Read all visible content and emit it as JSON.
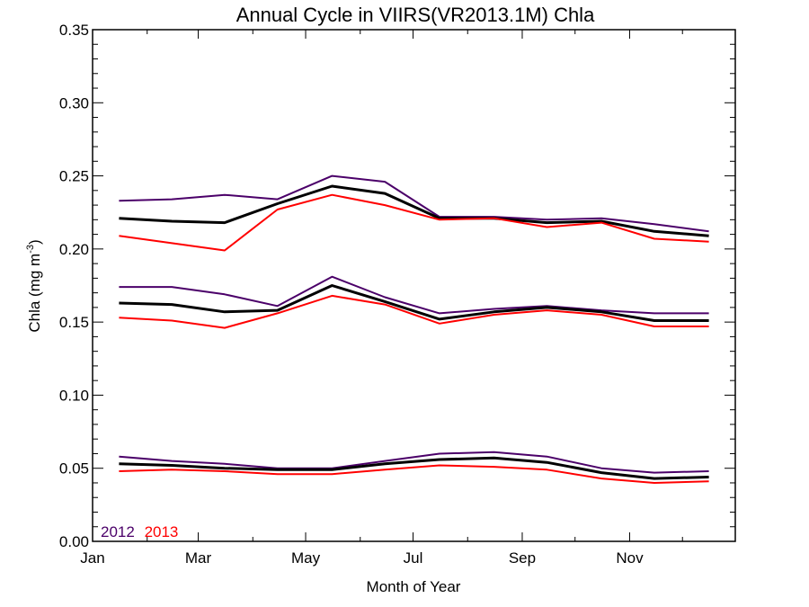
{
  "chart_data": {
    "type": "line",
    "title": "Annual Cycle in VIIRS(VR2013.1M) Chla",
    "xlabel": "Month of Year",
    "ylabel": "Chla (mg m",
    "ylabel_superscript": "-3",
    "ylabel_suffix": ")",
    "ylim": [
      0.0,
      0.35
    ],
    "xlim_days": [
      1,
      366
    ],
    "grid": false,
    "x_tick_labels": [
      "Jan",
      "Mar",
      "May",
      "Jul",
      "Sep",
      "Nov"
    ],
    "y_tick_labels": [
      "0.00",
      "0.05",
      "0.10",
      "0.15",
      "0.20",
      "0.25",
      "0.30",
      "0.35"
    ],
    "y_ticks": [
      0.0,
      0.05,
      0.1,
      0.15,
      0.2,
      0.25,
      0.3,
      0.35
    ],
    "legend": {
      "placement": "bottom-left",
      "items": [
        {
          "label": "2012",
          "color": "#4b0069"
        },
        {
          "label": "2013",
          "color": "#ff0000"
        }
      ]
    },
    "x": [
      "Jan 16",
      "Feb 15",
      "Mar 16",
      "Apr 15",
      "May 16",
      "Jun 15",
      "Jul 16",
      "Aug 16",
      "Sep 15",
      "Oct 16",
      "Nov 15",
      "Dec 16"
    ],
    "series": [
      {
        "group": "upper",
        "color": "#4b0069",
        "width": 2,
        "values": [
          0.233,
          0.234,
          0.237,
          0.234,
          0.25,
          0.246,
          0.222,
          0.222,
          0.22,
          0.221,
          0.217,
          0.212
        ]
      },
      {
        "group": "upper",
        "color": "#000000",
        "width": 3,
        "values": [
          0.221,
          0.219,
          0.218,
          0.231,
          0.243,
          0.238,
          0.221,
          0.221,
          0.218,
          0.219,
          0.212,
          0.209
        ]
      },
      {
        "group": "upper",
        "color": "#ff0000",
        "width": 2,
        "values": [
          0.209,
          0.204,
          0.199,
          0.227,
          0.237,
          0.23,
          0.22,
          0.221,
          0.215,
          0.218,
          0.207,
          0.205
        ]
      },
      {
        "group": "middle",
        "color": "#4b0069",
        "width": 2,
        "values": [
          0.174,
          0.174,
          0.169,
          0.161,
          0.181,
          0.167,
          0.156,
          0.159,
          0.161,
          0.158,
          0.156,
          0.156
        ]
      },
      {
        "group": "middle",
        "color": "#000000",
        "width": 3,
        "values": [
          0.163,
          0.162,
          0.157,
          0.158,
          0.175,
          0.164,
          0.152,
          0.157,
          0.16,
          0.157,
          0.151,
          0.151
        ]
      },
      {
        "group": "middle",
        "color": "#ff0000",
        "width": 2,
        "values": [
          0.153,
          0.151,
          0.146,
          0.156,
          0.168,
          0.162,
          0.149,
          0.155,
          0.158,
          0.155,
          0.147,
          0.147
        ]
      },
      {
        "group": "lower",
        "color": "#4b0069",
        "width": 2,
        "values": [
          0.058,
          0.055,
          0.053,
          0.05,
          0.05,
          0.055,
          0.06,
          0.061,
          0.058,
          0.05,
          0.047,
          0.048
        ]
      },
      {
        "group": "lower",
        "color": "#000000",
        "width": 3,
        "values": [
          0.053,
          0.052,
          0.05,
          0.049,
          0.049,
          0.053,
          0.056,
          0.057,
          0.054,
          0.047,
          0.043,
          0.044
        ]
      },
      {
        "group": "lower",
        "color": "#ff0000",
        "width": 2,
        "values": [
          0.048,
          0.049,
          0.048,
          0.046,
          0.046,
          0.049,
          0.052,
          0.051,
          0.049,
          0.043,
          0.04,
          0.041
        ]
      }
    ]
  }
}
